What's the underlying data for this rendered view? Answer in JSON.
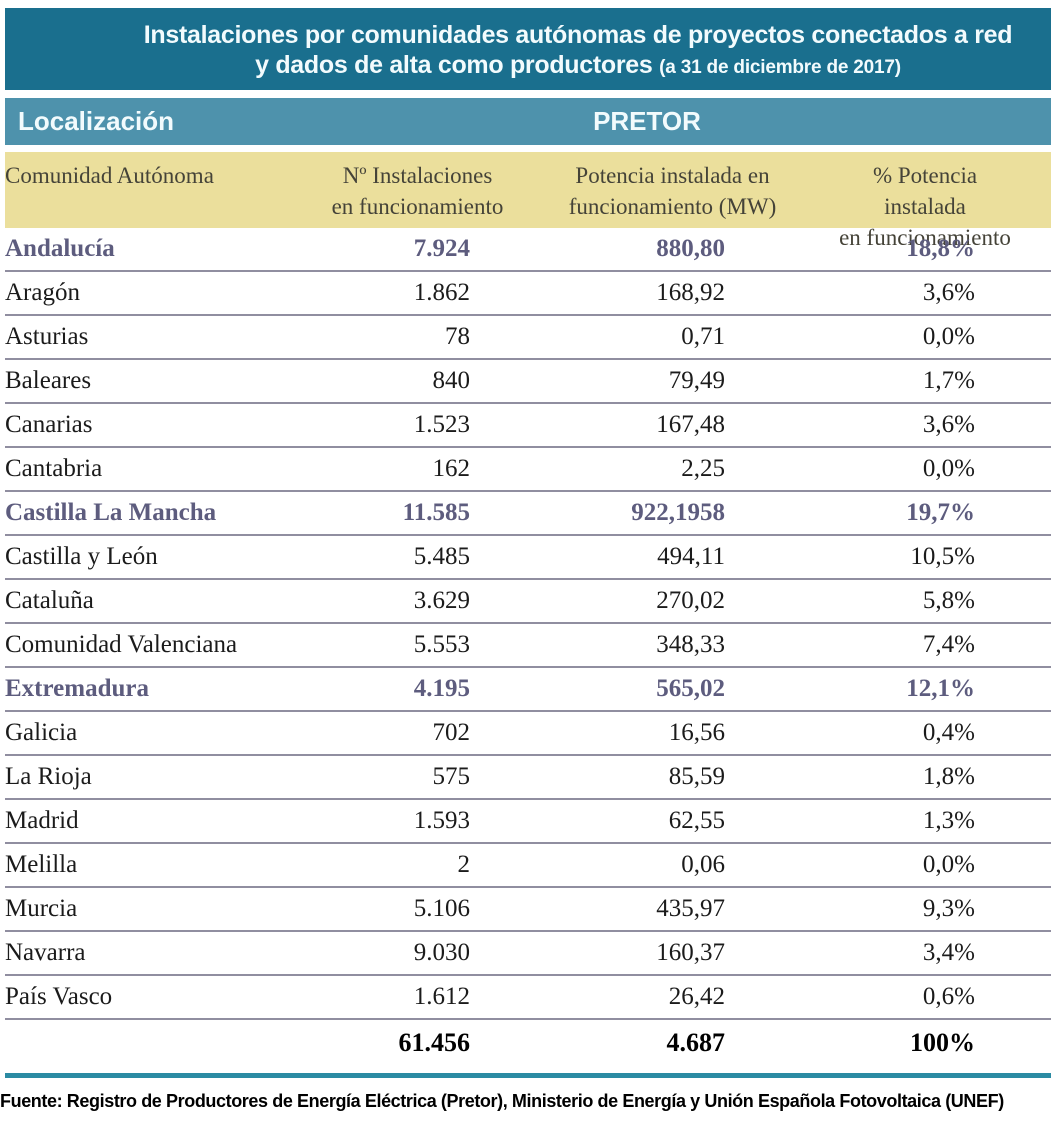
{
  "banner": {
    "title_line1": "Instalaciones por comunidades autónomas de proyectos conectados a red",
    "title_line2": "y dados de alta como productores",
    "date_note": "(a 31 de diciembre de 2017)"
  },
  "location_bar": {
    "left_label": "Localización",
    "center_label": "PRETOR"
  },
  "table": {
    "columns": [
      {
        "line1": "Comunidad Autónoma",
        "line2": ""
      },
      {
        "line1": "Nº Instalaciones",
        "line2": "en funcionamiento"
      },
      {
        "line1": "Potencia instalada en",
        "line2": "funcionamiento (MW)"
      },
      {
        "line1": "% Potencia instalada",
        "line2": "en funcionamiento"
      }
    ],
    "rows": [
      {
        "name": "Andalucía",
        "installations": "7.924",
        "power": "880,80",
        "percent": "18,8%",
        "highlight": true
      },
      {
        "name": "Aragón",
        "installations": "1.862",
        "power": "168,92",
        "percent": "3,6%",
        "highlight": false
      },
      {
        "name": "Asturias",
        "installations": "78",
        "power": "0,71",
        "percent": "0,0%",
        "highlight": false
      },
      {
        "name": "Baleares",
        "installations": "840",
        "power": "79,49",
        "percent": "1,7%",
        "highlight": false
      },
      {
        "name": "Canarias",
        "installations": "1.523",
        "power": "167,48",
        "percent": "3,6%",
        "highlight": false
      },
      {
        "name": "Cantabria",
        "installations": "162",
        "power": "2,25",
        "percent": "0,0%",
        "highlight": false
      },
      {
        "name": "Castilla La Mancha",
        "installations": "11.585",
        "power": "922,1958",
        "percent": "19,7%",
        "highlight": true
      },
      {
        "name": "Castilla y León",
        "installations": "5.485",
        "power": "494,11",
        "percent": "10,5%",
        "highlight": false
      },
      {
        "name": "Cataluña",
        "installations": "3.629",
        "power": "270,02",
        "percent": "5,8%",
        "highlight": false
      },
      {
        "name": "Comunidad Valenciana",
        "installations": "5.553",
        "power": "348,33",
        "percent": "7,4%",
        "highlight": false
      },
      {
        "name": "Extremadura",
        "installations": "4.195",
        "power": "565,02",
        "percent": "12,1%",
        "highlight": true
      },
      {
        "name": "Galicia",
        "installations": "702",
        "power": "16,56",
        "percent": "0,4%",
        "highlight": false
      },
      {
        "name": "La Rioja",
        "installations": "575",
        "power": "85,59",
        "percent": "1,8%",
        "highlight": false
      },
      {
        "name": "Madrid",
        "installations": "1.593",
        "power": "62,55",
        "percent": "1,3%",
        "highlight": false
      },
      {
        "name": "Melilla",
        "installations": "2",
        "power": "0,06",
        "percent": "0,0%",
        "highlight": false
      },
      {
        "name": "Murcia",
        "installations": "5.106",
        "power": "435,97",
        "percent": "9,3%",
        "highlight": false
      },
      {
        "name": "Navarra",
        "installations": "9.030",
        "power": "160,37",
        "percent": "3,4%",
        "highlight": false
      },
      {
        "name": "País Vasco",
        "installations": "1.612",
        "power": "26,42",
        "percent": "0,6%",
        "highlight": false
      }
    ],
    "total_row": {
      "installations": "61.456",
      "power": "4.687",
      "percent": "100%"
    }
  },
  "footer": {
    "source": "Fuente: Registro de Productores de Energía Eléctrica (Pretor), Ministerio de Energía y Unión Española Fotovoltaica (UNEF)"
  },
  "colors": {
    "banner_bg": "#1a6f8e",
    "bar_bg": "#4e92ac",
    "header_bg": "#ebdf9c",
    "highlight_text": "#5d5c7e",
    "separator": "#908ea0",
    "rule": "#2b8ba3"
  }
}
